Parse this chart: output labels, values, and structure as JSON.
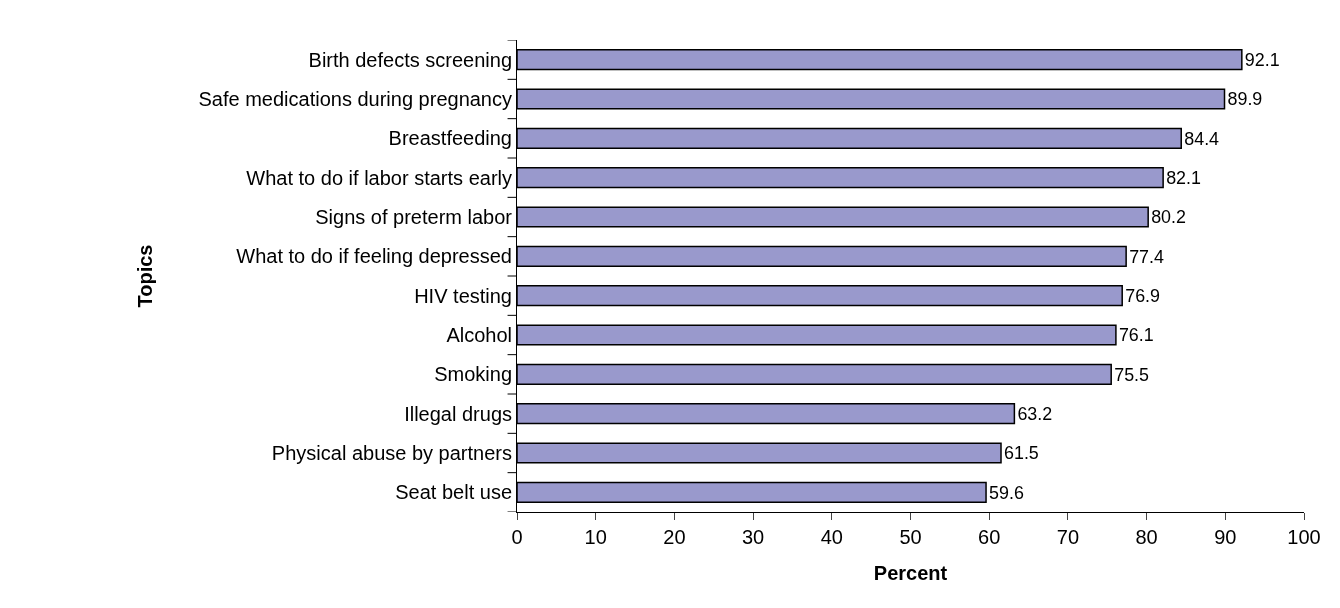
{
  "chart_data": {
    "type": "bar",
    "orientation": "horizontal",
    "xlabel": "Percent",
    "ylabel": "Topics",
    "categories": [
      "Birth defects screening",
      "Safe medications during pregnancy",
      "Breastfeeding",
      "What to do if labor starts early",
      "Signs of preterm labor",
      "What to do if feeling depressed",
      "HIV testing",
      "Alcohol",
      "Smoking",
      "Illegal drugs",
      "Physical abuse by partners",
      "Seat belt use"
    ],
    "values": [
      92.1,
      89.9,
      84.4,
      82.1,
      80.2,
      77.4,
      76.9,
      76.1,
      75.5,
      63.2,
      61.5,
      59.6
    ],
    "color": "#9999cc",
    "xlim": [
      0,
      100
    ],
    "xticks": [
      0,
      10,
      20,
      30,
      40,
      50,
      60,
      70,
      80,
      90,
      100
    ],
    "data_labels": true
  }
}
